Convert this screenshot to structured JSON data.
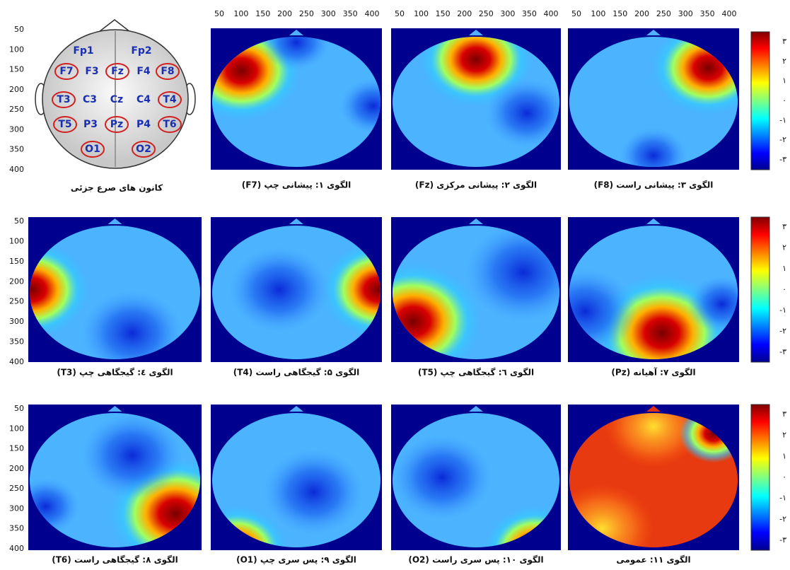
{
  "x_axis_ticks": [
    50,
    100,
    150,
    200,
    250,
    300,
    350,
    400
  ],
  "y_axis_ticks": [
    50,
    100,
    150,
    200,
    250,
    300,
    350,
    400
  ],
  "colorbar_ticks": [
    "۳",
    "۲",
    "۱",
    "۰",
    "-۱",
    "-۲",
    "-۳"
  ],
  "head": {
    "caption": "کانون های صرع جزئی",
    "electrodes": [
      {
        "label": "Fp1",
        "circled": false
      },
      {
        "label": "Fp2",
        "circled": false
      },
      {
        "label": "F7",
        "circled": true
      },
      {
        "label": "F3",
        "circled": false
      },
      {
        "label": "Fz",
        "circled": true
      },
      {
        "label": "F4",
        "circled": false
      },
      {
        "label": "F8",
        "circled": true
      },
      {
        "label": "T3",
        "circled": true
      },
      {
        "label": "C3",
        "circled": false
      },
      {
        "label": "Cz",
        "circled": false
      },
      {
        "label": "C4",
        "circled": false
      },
      {
        "label": "T4",
        "circled": true
      },
      {
        "label": "T5",
        "circled": true
      },
      {
        "label": "P3",
        "circled": false
      },
      {
        "label": "Pz",
        "circled": true
      },
      {
        "label": "P4",
        "circled": false
      },
      {
        "label": "T6",
        "circled": true
      },
      {
        "label": "O1",
        "circled": true
      },
      {
        "label": "O2",
        "circled": true
      }
    ]
  },
  "panels": [
    {
      "caption": "الگوی ۱: پیشانی چپ (F7)"
    },
    {
      "caption": "الگوی ۲: پیشانی مرکزی (Fz)"
    },
    {
      "caption": "الگوی ۳: پیشانی راست (F8)"
    },
    {
      "caption": "الگوی ٤: گیجگاهی چپ (T3)"
    },
    {
      "caption": "الگوی ۵: گیجگاهی راست (T4)"
    },
    {
      "caption": "الگوی ٦: گیجگاهی چپ (T5)"
    },
    {
      "caption": "الگوی ۷: آهیانه (Pz)"
    },
    {
      "caption": "الگوی ۸: گیجگاهی راست (T6)"
    },
    {
      "caption": "الگوی ۹: پس سری چپ (O1)"
    },
    {
      "caption": "الگوی ۱۰: پس سری راست (O2)"
    },
    {
      "caption": "الگوی ۱۱: عمومی"
    }
  ]
}
